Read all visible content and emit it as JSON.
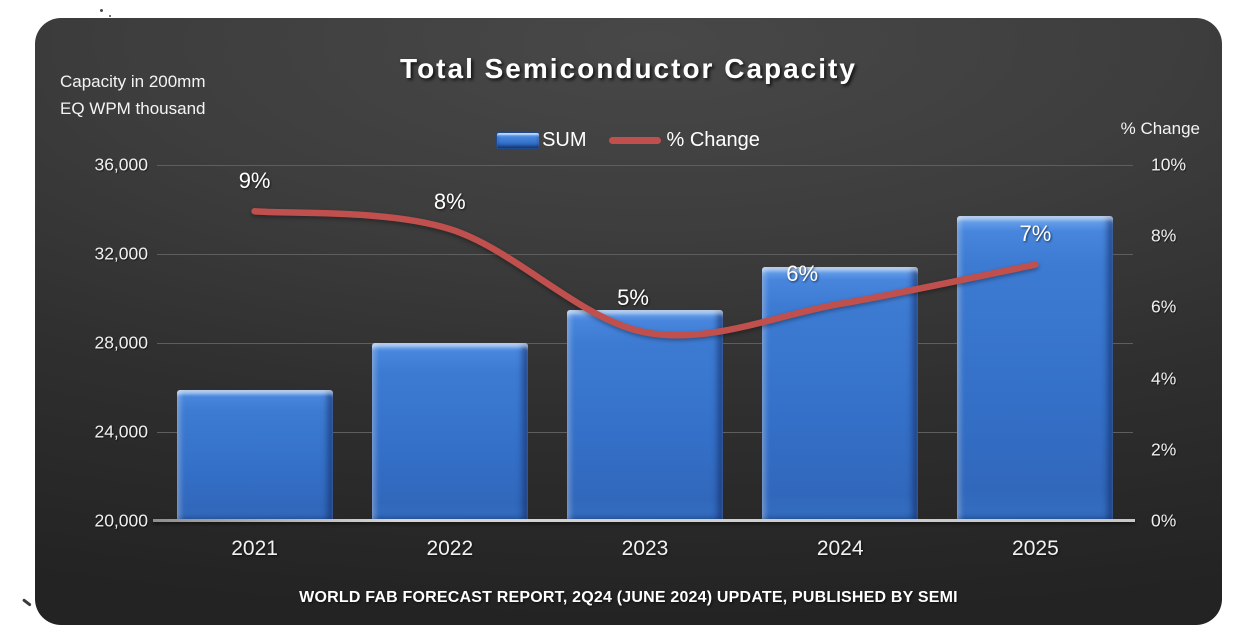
{
  "title": "Total Semiconductor Capacity",
  "left_axis_title": {
    "line1": "Capacity in 200mm",
    "line2": "EQ WPM thousand"
  },
  "right_axis_title": "% Change",
  "legend": [
    {
      "label": "SUM",
      "marker": "bar-icon",
      "color": "#3d7bd3"
    },
    {
      "label": "% Change",
      "marker": "line-icon",
      "color": "#c0504d"
    }
  ],
  "footer": "WORLD FAB FORECAST REPORT, 2Q24 (JUNE 2024) UPDATE, PUBLISHED BY SEMI",
  "colors": {
    "bar": "#3d7bd3",
    "line": "#c0504d",
    "panel_top": "#484848",
    "panel_bottom": "#232323",
    "grid": "#5e5e5e",
    "text": "#f2f2f2"
  },
  "chart_data": {
    "type": "combo (bar + line)",
    "title": "Total Semiconductor Capacity",
    "categories": [
      "2021",
      "2022",
      "2023",
      "2024",
      "2025"
    ],
    "series": [
      {
        "name": "SUM",
        "type": "bar",
        "axis": "left",
        "color": "#3d7bd3",
        "values": [
          25900,
          28000,
          29500,
          31400,
          33700
        ]
      },
      {
        "name": "% Change",
        "type": "line",
        "axis": "right",
        "color": "#c0504d",
        "values": [
          8.7,
          8.2,
          5.3,
          6.1,
          7.2
        ],
        "labels": [
          "9%",
          "8%",
          "5%",
          "6%",
          "7%"
        ],
        "label_offsets": {
          "dx": [
            0,
            0,
            -12,
            -38,
            0
          ],
          "dy": [
            -30,
            -27,
            -34,
            -30,
            -31
          ]
        }
      }
    ],
    "left_axis": {
      "label": "Capacity in 200mm EQ WPM thousand",
      "min": 20000,
      "max": 36000,
      "step": 4000,
      "ticks": [
        "36,000",
        "32,000",
        "28,000",
        "24,000",
        "20,000"
      ]
    },
    "right_axis": {
      "label": "% Change",
      "min": 0,
      "max": 10,
      "step": 2,
      "ticks": [
        "10%",
        "8%",
        "6%",
        "4%",
        "2%",
        "0%"
      ]
    },
    "grid": true,
    "legend_position": "top-center",
    "source": "WORLD FAB FORECAST REPORT, 2Q24 (JUNE 2024) UPDATE, PUBLISHED BY SEMI"
  }
}
